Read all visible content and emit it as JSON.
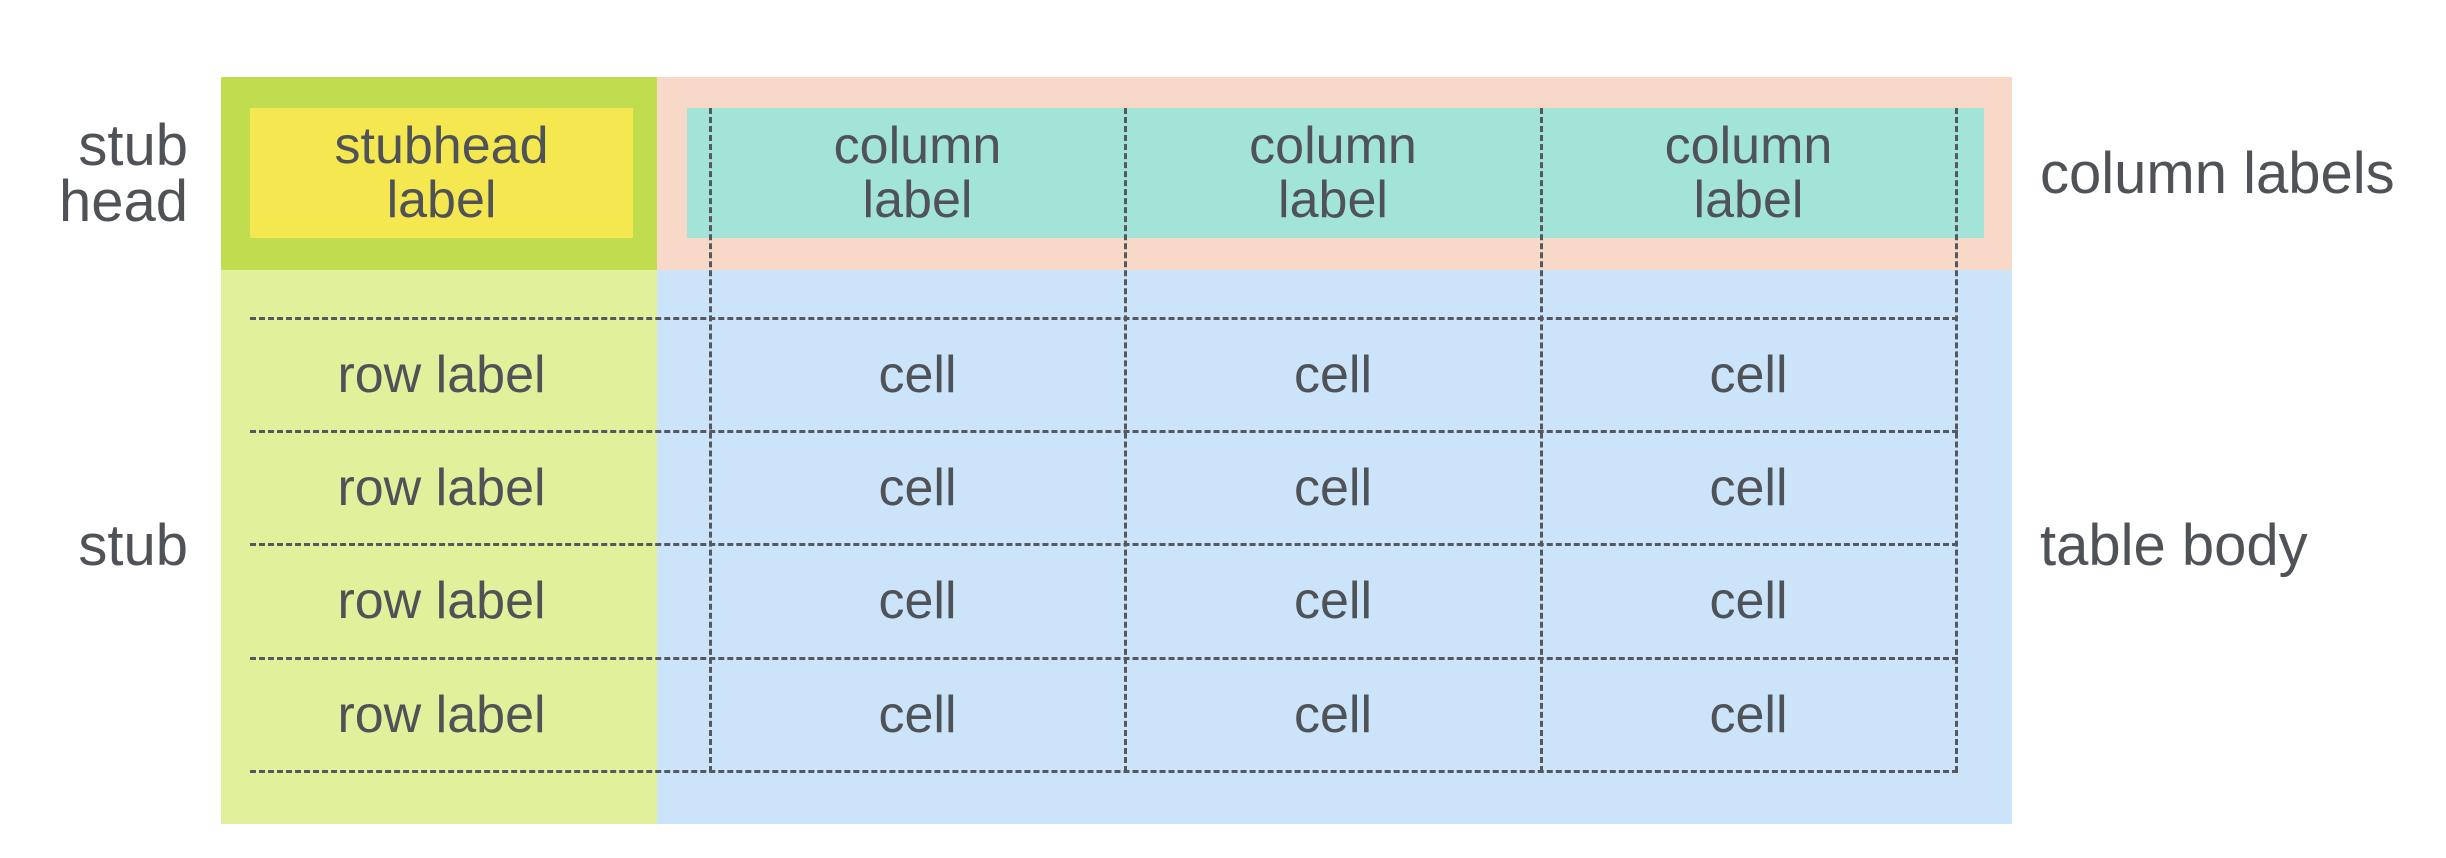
{
  "labels": {
    "stub_head": "stub\nhead",
    "stub": "stub",
    "column_labels": "column labels",
    "table_body": "table body"
  },
  "stubhead_label": "stubhead\nlabel",
  "column_labels": [
    "column\nlabel",
    "column\nlabel",
    "column\nlabel"
  ],
  "rows": [
    {
      "label": "row label",
      "cells": [
        "cell",
        "cell",
        "cell"
      ]
    },
    {
      "label": "row label",
      "cells": [
        "cell",
        "cell",
        "cell"
      ]
    },
    {
      "label": "row label",
      "cells": [
        "cell",
        "cell",
        "cell"
      ]
    },
    {
      "label": "row label",
      "cells": [
        "cell",
        "cell",
        "cell"
      ]
    }
  ],
  "colors": {
    "stub_head_region": "#bfdd4f",
    "stubhead_label_box": "#f4e74f",
    "column_labels_region": "#f8d9c8",
    "column_label_band": "#a3e4d8",
    "stub_region": "#e1f09b",
    "table_body_region": "#cbe4f9",
    "text": "#4f5257"
  }
}
